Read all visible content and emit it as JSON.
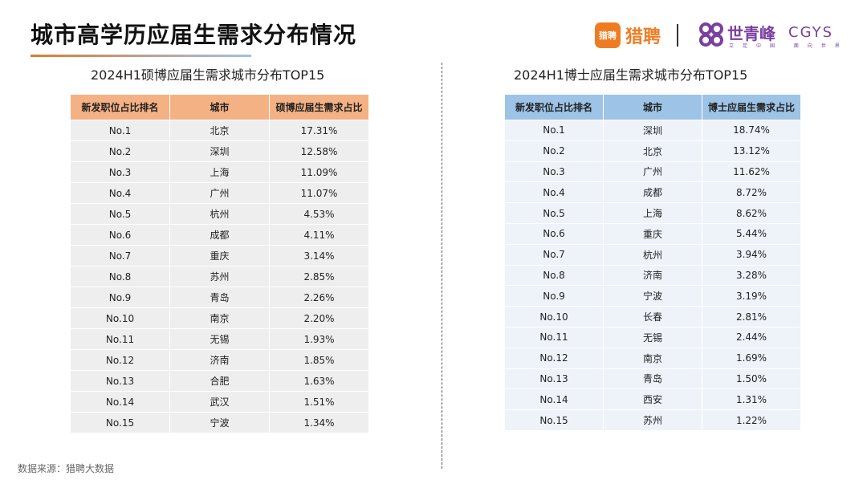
{
  "header": {
    "title": "城市高学历应届生需求分布情况",
    "brand_liepin_badge": "猎聘",
    "brand_liepin_name": "猎聘",
    "brand_cgys_cn": "世青峰",
    "brand_cgys_en": "CGYS",
    "brand_cgys_tagline": "立足中国 面向世界"
  },
  "left_table": {
    "caption": "2024H1硕博应届生需求城市分布TOP15",
    "columns": [
      "新发职位占比排名",
      "城市",
      "硕博应届生需求占比"
    ],
    "rows": [
      [
        "No.1",
        "北京",
        "17.31%"
      ],
      [
        "No.2",
        "深圳",
        "12.58%"
      ],
      [
        "No.3",
        "上海",
        "11.09%"
      ],
      [
        "No.4",
        "广州",
        "11.07%"
      ],
      [
        "No.5",
        "杭州",
        "4.53%"
      ],
      [
        "No.6",
        "成都",
        "4.11%"
      ],
      [
        "No.7",
        "重庆",
        "3.14%"
      ],
      [
        "No.8",
        "苏州",
        "2.85%"
      ],
      [
        "No.9",
        "青岛",
        "2.26%"
      ],
      [
        "No.10",
        "南京",
        "2.20%"
      ],
      [
        "No.11",
        "无锡",
        "1.93%"
      ],
      [
        "No.12",
        "济南",
        "1.85%"
      ],
      [
        "No.13",
        "合肥",
        "1.63%"
      ],
      [
        "No.14",
        "武汉",
        "1.51%"
      ],
      [
        "No.15",
        "宁波",
        "1.34%"
      ]
    ]
  },
  "right_table": {
    "caption": "2024H1博士应届生需求城市分布TOP15",
    "columns": [
      "新发职位占比排名",
      "城市",
      "博士应届生需求占比"
    ],
    "rows": [
      [
        "No.1",
        "深圳",
        "18.74%"
      ],
      [
        "No.2",
        "北京",
        "13.12%"
      ],
      [
        "No.3",
        "广州",
        "11.62%"
      ],
      [
        "No.4",
        "成都",
        "8.72%"
      ],
      [
        "No.5",
        "上海",
        "8.62%"
      ],
      [
        "No.6",
        "重庆",
        "5.44%"
      ],
      [
        "No.7",
        "杭州",
        "3.94%"
      ],
      [
        "No.8",
        "济南",
        "3.28%"
      ],
      [
        "No.9",
        "宁波",
        "3.19%"
      ],
      [
        "No.10",
        "长春",
        "2.81%"
      ],
      [
        "No.11",
        "无锡",
        "2.44%"
      ],
      [
        "No.12",
        "南京",
        "1.69%"
      ],
      [
        "No.13",
        "青岛",
        "1.50%"
      ],
      [
        "No.14",
        "西安",
        "1.31%"
      ],
      [
        "No.15",
        "苏州",
        "1.22%"
      ]
    ]
  },
  "footer": {
    "source": "数据来源：猎聘大数据"
  },
  "colors": {
    "left_header": "#f4b183",
    "right_header": "#9dc3e6",
    "liepin_orange": "#f07c22",
    "cgys_purple": "#7a3fa0"
  }
}
